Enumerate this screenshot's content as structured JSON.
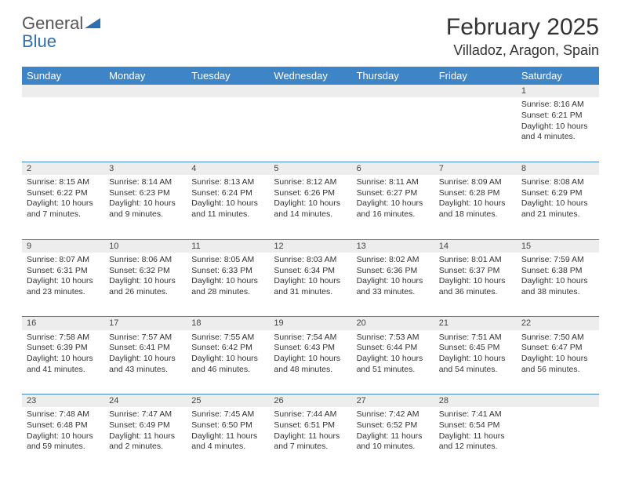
{
  "logo": {
    "line1": "General",
    "line2": "Blue"
  },
  "title": "February 2025",
  "location": "Villadoz, Aragon, Spain",
  "header_bg": "#3d85c6",
  "header_fg": "#ffffff",
  "daynum_bg": "#ededed",
  "border_color": "#3d85c6",
  "font_family": "Arial",
  "dayNames": [
    "Sunday",
    "Monday",
    "Tuesday",
    "Wednesday",
    "Thursday",
    "Friday",
    "Saturday"
  ],
  "weeks": [
    [
      null,
      null,
      null,
      null,
      null,
      null,
      {
        "n": "1",
        "sunrise": "Sunrise: 8:16 AM",
        "sunset": "Sunset: 6:21 PM",
        "day1": "Daylight: 10 hours",
        "day2": "and 4 minutes."
      }
    ],
    [
      {
        "n": "2",
        "sunrise": "Sunrise: 8:15 AM",
        "sunset": "Sunset: 6:22 PM",
        "day1": "Daylight: 10 hours",
        "day2": "and 7 minutes."
      },
      {
        "n": "3",
        "sunrise": "Sunrise: 8:14 AM",
        "sunset": "Sunset: 6:23 PM",
        "day1": "Daylight: 10 hours",
        "day2": "and 9 minutes."
      },
      {
        "n": "4",
        "sunrise": "Sunrise: 8:13 AM",
        "sunset": "Sunset: 6:24 PM",
        "day1": "Daylight: 10 hours",
        "day2": "and 11 minutes."
      },
      {
        "n": "5",
        "sunrise": "Sunrise: 8:12 AM",
        "sunset": "Sunset: 6:26 PM",
        "day1": "Daylight: 10 hours",
        "day2": "and 14 minutes."
      },
      {
        "n": "6",
        "sunrise": "Sunrise: 8:11 AM",
        "sunset": "Sunset: 6:27 PM",
        "day1": "Daylight: 10 hours",
        "day2": "and 16 minutes."
      },
      {
        "n": "7",
        "sunrise": "Sunrise: 8:09 AM",
        "sunset": "Sunset: 6:28 PM",
        "day1": "Daylight: 10 hours",
        "day2": "and 18 minutes."
      },
      {
        "n": "8",
        "sunrise": "Sunrise: 8:08 AM",
        "sunset": "Sunset: 6:29 PM",
        "day1": "Daylight: 10 hours",
        "day2": "and 21 minutes."
      }
    ],
    [
      {
        "n": "9",
        "sunrise": "Sunrise: 8:07 AM",
        "sunset": "Sunset: 6:31 PM",
        "day1": "Daylight: 10 hours",
        "day2": "and 23 minutes."
      },
      {
        "n": "10",
        "sunrise": "Sunrise: 8:06 AM",
        "sunset": "Sunset: 6:32 PM",
        "day1": "Daylight: 10 hours",
        "day2": "and 26 minutes."
      },
      {
        "n": "11",
        "sunrise": "Sunrise: 8:05 AM",
        "sunset": "Sunset: 6:33 PM",
        "day1": "Daylight: 10 hours",
        "day2": "and 28 minutes."
      },
      {
        "n": "12",
        "sunrise": "Sunrise: 8:03 AM",
        "sunset": "Sunset: 6:34 PM",
        "day1": "Daylight: 10 hours",
        "day2": "and 31 minutes."
      },
      {
        "n": "13",
        "sunrise": "Sunrise: 8:02 AM",
        "sunset": "Sunset: 6:36 PM",
        "day1": "Daylight: 10 hours",
        "day2": "and 33 minutes."
      },
      {
        "n": "14",
        "sunrise": "Sunrise: 8:01 AM",
        "sunset": "Sunset: 6:37 PM",
        "day1": "Daylight: 10 hours",
        "day2": "and 36 minutes."
      },
      {
        "n": "15",
        "sunrise": "Sunrise: 7:59 AM",
        "sunset": "Sunset: 6:38 PM",
        "day1": "Daylight: 10 hours",
        "day2": "and 38 minutes."
      }
    ],
    [
      {
        "n": "16",
        "sunrise": "Sunrise: 7:58 AM",
        "sunset": "Sunset: 6:39 PM",
        "day1": "Daylight: 10 hours",
        "day2": "and 41 minutes."
      },
      {
        "n": "17",
        "sunrise": "Sunrise: 7:57 AM",
        "sunset": "Sunset: 6:41 PM",
        "day1": "Daylight: 10 hours",
        "day2": "and 43 minutes."
      },
      {
        "n": "18",
        "sunrise": "Sunrise: 7:55 AM",
        "sunset": "Sunset: 6:42 PM",
        "day1": "Daylight: 10 hours",
        "day2": "and 46 minutes."
      },
      {
        "n": "19",
        "sunrise": "Sunrise: 7:54 AM",
        "sunset": "Sunset: 6:43 PM",
        "day1": "Daylight: 10 hours",
        "day2": "and 48 minutes."
      },
      {
        "n": "20",
        "sunrise": "Sunrise: 7:53 AM",
        "sunset": "Sunset: 6:44 PM",
        "day1": "Daylight: 10 hours",
        "day2": "and 51 minutes."
      },
      {
        "n": "21",
        "sunrise": "Sunrise: 7:51 AM",
        "sunset": "Sunset: 6:45 PM",
        "day1": "Daylight: 10 hours",
        "day2": "and 54 minutes."
      },
      {
        "n": "22",
        "sunrise": "Sunrise: 7:50 AM",
        "sunset": "Sunset: 6:47 PM",
        "day1": "Daylight: 10 hours",
        "day2": "and 56 minutes."
      }
    ],
    [
      {
        "n": "23",
        "sunrise": "Sunrise: 7:48 AM",
        "sunset": "Sunset: 6:48 PM",
        "day1": "Daylight: 10 hours",
        "day2": "and 59 minutes."
      },
      {
        "n": "24",
        "sunrise": "Sunrise: 7:47 AM",
        "sunset": "Sunset: 6:49 PM",
        "day1": "Daylight: 11 hours",
        "day2": "and 2 minutes."
      },
      {
        "n": "25",
        "sunrise": "Sunrise: 7:45 AM",
        "sunset": "Sunset: 6:50 PM",
        "day1": "Daylight: 11 hours",
        "day2": "and 4 minutes."
      },
      {
        "n": "26",
        "sunrise": "Sunrise: 7:44 AM",
        "sunset": "Sunset: 6:51 PM",
        "day1": "Daylight: 11 hours",
        "day2": "and 7 minutes."
      },
      {
        "n": "27",
        "sunrise": "Sunrise: 7:42 AM",
        "sunset": "Sunset: 6:52 PM",
        "day1": "Daylight: 11 hours",
        "day2": "and 10 minutes."
      },
      {
        "n": "28",
        "sunrise": "Sunrise: 7:41 AM",
        "sunset": "Sunset: 6:54 PM",
        "day1": "Daylight: 11 hours",
        "day2": "and 12 minutes."
      },
      null
    ]
  ]
}
